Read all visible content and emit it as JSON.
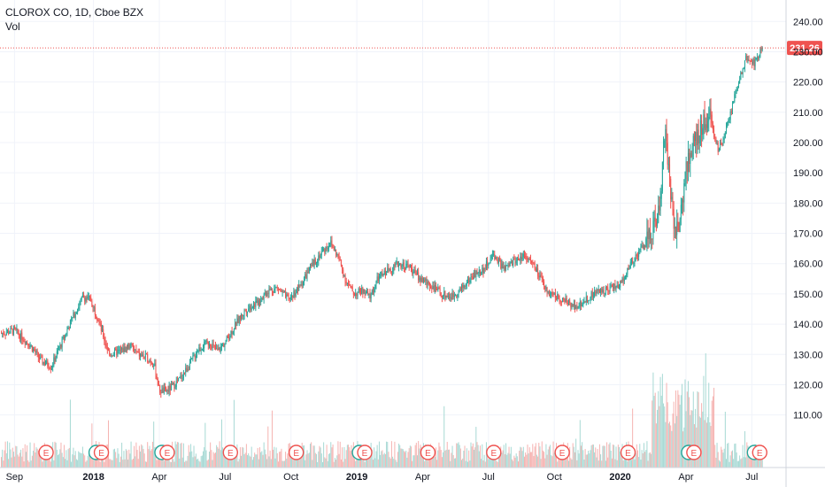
{
  "header": {
    "title": "CLOROX CO, 1D, Cboe BZX",
    "volume_label": "Vol"
  },
  "colors": {
    "up": "#26a69a",
    "down": "#ef5350",
    "vol_up": "#a7d9d4",
    "vol_down": "#f5b3b1",
    "grid": "#f0f3fa",
    "axis_line": "#d1d4dc",
    "last_price": "#ef5350",
    "earnings_ring": "#ef5350",
    "dividend_ring": "#26a69a"
  },
  "chart_data": {
    "type": "candlestick",
    "title": "CLOROX CO, 1D, Cboe BZX",
    "ylim": [
      102,
      243
    ],
    "y_ticks": [
      "110.00",
      "120.00",
      "130.00",
      "140.00",
      "150.00",
      "160.00",
      "170.00",
      "180.00",
      "190.00",
      "200.00",
      "210.00",
      "220.00",
      "230.00",
      "240.00"
    ],
    "y_tick_values": [
      110,
      120,
      130,
      140,
      150,
      160,
      170,
      180,
      190,
      200,
      210,
      220,
      230,
      240
    ],
    "x_ticks": [
      {
        "label": "Sep",
        "t": 0.0,
        "bold": false
      },
      {
        "label": "2018",
        "t": 0.3,
        "bold": true
      },
      {
        "label": "Apr",
        "t": 0.55,
        "bold": false
      },
      {
        "label": "Jul",
        "t": 0.8,
        "bold": false
      },
      {
        "label": "Oct",
        "t": 1.05,
        "bold": false
      },
      {
        "label": "2019",
        "t": 1.3,
        "bold": true
      },
      {
        "label": "Apr",
        "t": 1.55,
        "bold": false
      },
      {
        "label": "Jul",
        "t": 1.8,
        "bold": false
      },
      {
        "label": "Oct",
        "t": 2.05,
        "bold": false
      },
      {
        "label": "2020",
        "t": 2.3,
        "bold": true
      },
      {
        "label": "Apr",
        "t": 2.55,
        "bold": false
      },
      {
        "label": "Jul",
        "t": 2.8,
        "bold": false
      }
    ],
    "last_price": "231.26",
    "last_price_value": 231.26,
    "price_path": [
      {
        "t": -0.05,
        "p": 137
      },
      {
        "t": 0.0,
        "p": 138
      },
      {
        "t": 0.06,
        "p": 133
      },
      {
        "t": 0.1,
        "p": 128
      },
      {
        "t": 0.14,
        "p": 126
      },
      {
        "t": 0.18,
        "p": 134
      },
      {
        "t": 0.22,
        "p": 142
      },
      {
        "t": 0.26,
        "p": 149
      },
      {
        "t": 0.29,
        "p": 148
      },
      {
        "t": 0.32,
        "p": 141
      },
      {
        "t": 0.33,
        "p": 138
      },
      {
        "t": 0.36,
        "p": 130
      },
      {
        "t": 0.4,
        "p": 131
      },
      {
        "t": 0.44,
        "p": 133
      },
      {
        "t": 0.47,
        "p": 130
      },
      {
        "t": 0.5,
        "p": 129
      },
      {
        "t": 0.53,
        "p": 127
      },
      {
        "t": 0.55,
        "p": 118
      },
      {
        "t": 0.58,
        "p": 118
      },
      {
        "t": 0.62,
        "p": 121
      },
      {
        "t": 0.66,
        "p": 126
      },
      {
        "t": 0.7,
        "p": 132
      },
      {
        "t": 0.74,
        "p": 134
      },
      {
        "t": 0.77,
        "p": 131
      },
      {
        "t": 0.8,
        "p": 134
      },
      {
        "t": 0.84,
        "p": 140
      },
      {
        "t": 0.88,
        "p": 145
      },
      {
        "t": 0.92,
        "p": 147
      },
      {
        "t": 0.96,
        "p": 151
      },
      {
        "t": 1.0,
        "p": 152
      },
      {
        "t": 1.04,
        "p": 148
      },
      {
        "t": 1.08,
        "p": 152
      },
      {
        "t": 1.12,
        "p": 158
      },
      {
        "t": 1.16,
        "p": 163
      },
      {
        "t": 1.2,
        "p": 167
      },
      {
        "t": 1.23,
        "p": 162
      },
      {
        "t": 1.26,
        "p": 154
      },
      {
        "t": 1.29,
        "p": 150
      },
      {
        "t": 1.32,
        "p": 151
      },
      {
        "t": 1.35,
        "p": 149
      },
      {
        "t": 1.38,
        "p": 155
      },
      {
        "t": 1.42,
        "p": 158
      },
      {
        "t": 1.46,
        "p": 160
      },
      {
        "t": 1.5,
        "p": 159
      },
      {
        "t": 1.54,
        "p": 155
      },
      {
        "t": 1.58,
        "p": 153
      },
      {
        "t": 1.62,
        "p": 150
      },
      {
        "t": 1.66,
        "p": 149
      },
      {
        "t": 1.7,
        "p": 152
      },
      {
        "t": 1.74,
        "p": 156
      },
      {
        "t": 1.78,
        "p": 158
      },
      {
        "t": 1.82,
        "p": 163
      },
      {
        "t": 1.86,
        "p": 158
      },
      {
        "t": 1.9,
        "p": 161
      },
      {
        "t": 1.94,
        "p": 163
      },
      {
        "t": 1.98,
        "p": 158
      },
      {
        "t": 2.02,
        "p": 151
      },
      {
        "t": 2.06,
        "p": 149
      },
      {
        "t": 2.1,
        "p": 147
      },
      {
        "t": 2.14,
        "p": 146
      },
      {
        "t": 2.18,
        "p": 149
      },
      {
        "t": 2.22,
        "p": 151
      },
      {
        "t": 2.26,
        "p": 152
      },
      {
        "t": 2.3,
        "p": 153
      },
      {
        "t": 2.34,
        "p": 160
      },
      {
        "t": 2.38,
        "p": 165
      },
      {
        "t": 2.42,
        "p": 170
      },
      {
        "t": 2.45,
        "p": 178
      },
      {
        "t": 2.47,
        "p": 205
      },
      {
        "t": 2.49,
        "p": 185
      },
      {
        "t": 2.51,
        "p": 170
      },
      {
        "t": 2.53,
        "p": 175
      },
      {
        "t": 2.55,
        "p": 192
      },
      {
        "t": 2.58,
        "p": 200
      },
      {
        "t": 2.61,
        "p": 205
      },
      {
        "t": 2.64,
        "p": 208
      },
      {
        "t": 2.67,
        "p": 198
      },
      {
        "t": 2.69,
        "p": 200
      },
      {
        "t": 2.72,
        "p": 210
      },
      {
        "t": 2.75,
        "p": 220
      },
      {
        "t": 2.78,
        "p": 228
      },
      {
        "t": 2.81,
        "p": 226
      },
      {
        "t": 2.84,
        "p": 231.26
      }
    ],
    "events": [
      {
        "type": "E",
        "t": 0.12
      },
      {
        "type": "D",
        "t": 0.31
      },
      {
        "type": "E",
        "t": 0.33
      },
      {
        "type": "D",
        "t": 0.56
      },
      {
        "type": "E",
        "t": 0.58
      },
      {
        "type": "E",
        "t": 0.82
      },
      {
        "type": "E",
        "t": 1.07
      },
      {
        "type": "D",
        "t": 1.31
      },
      {
        "type": "E",
        "t": 1.33
      },
      {
        "type": "E",
        "t": 1.57
      },
      {
        "type": "E",
        "t": 1.82
      },
      {
        "type": "E",
        "t": 2.08
      },
      {
        "type": "E",
        "t": 2.33
      },
      {
        "type": "D",
        "t": 2.56
      },
      {
        "type": "E",
        "t": 2.58
      },
      {
        "type": "D",
        "t": 2.81
      },
      {
        "type": "E",
        "t": 2.83
      }
    ]
  }
}
